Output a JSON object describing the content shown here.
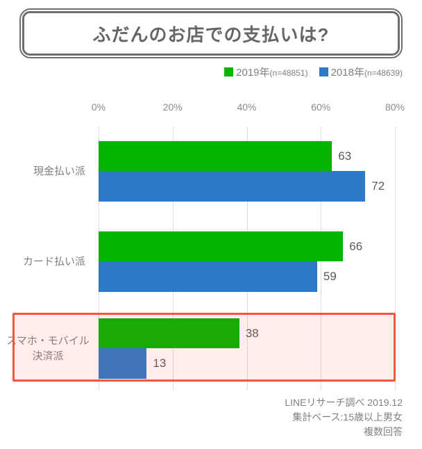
{
  "title": "ふだんのお店での支払いは?",
  "legend": [
    {
      "label": "2019年",
      "n_label": "(n=48851)",
      "color": "#00b400"
    },
    {
      "label": "2018年",
      "n_label": "(n=48639)",
      "color": "#2e78c8"
    }
  ],
  "chart_data": {
    "type": "bar",
    "orientation": "horizontal",
    "title": "ふだんのお店での支払いは?",
    "categories": [
      "現金払い派",
      "カード払い派",
      "スマホ・モバイル\n決済派"
    ],
    "series": [
      {
        "name": "2019年",
        "n": 48851,
        "color": "#00b400",
        "values": [
          63,
          66,
          38
        ]
      },
      {
        "name": "2018年",
        "n": 48639,
        "color": "#2e78c8",
        "values": [
          72,
          59,
          13
        ]
      }
    ],
    "x_ticks": [
      "0%",
      "20%",
      "40%",
      "60%",
      "80%"
    ],
    "xlim": [
      0,
      80
    ],
    "grid": "vertical",
    "legend_position": "top-right",
    "highlighted_category": "スマホ・モバイル決済派",
    "highlight_color": "#f4573d"
  },
  "footer": {
    "line1": "LINEリサーチ調べ 2019.12",
    "line2": "集計ベース:15歳以上男女",
    "line3": "複数回答"
  }
}
